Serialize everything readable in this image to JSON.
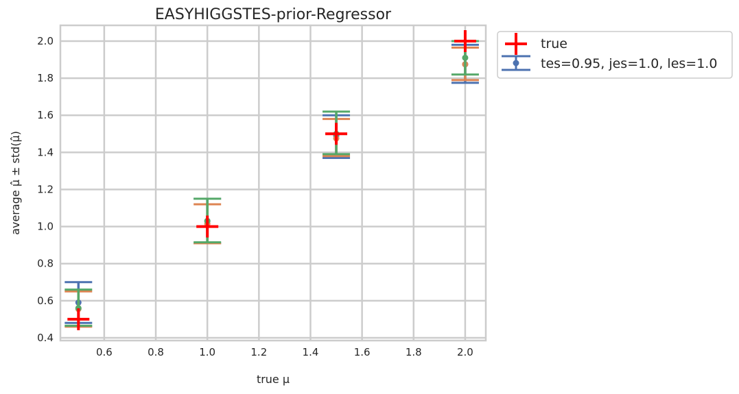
{
  "chart_data": {
    "type": "scatter",
    "title": "EASYHIGGSTES-prior-Regressor",
    "xlabel": "true μ",
    "ylabel": "average μ̂ ± std(μ̂)",
    "xlim": [
      0.43,
      2.08
    ],
    "ylim": [
      0.385,
      2.085
    ],
    "xticks": [
      0.6,
      0.8,
      1.0,
      1.2,
      1.4,
      1.6,
      1.8,
      2.0
    ],
    "yticks": [
      0.4,
      0.6,
      0.8,
      1.0,
      1.2,
      1.4,
      1.6,
      1.8,
      2.0
    ],
    "grid": true,
    "legend_position": "outside-top-right",
    "true_series": {
      "name": "true",
      "color": "#ff0000",
      "points": [
        {
          "x": 0.5,
          "y": 0.5
        },
        {
          "x": 1.0,
          "y": 1.0
        },
        {
          "x": 1.5,
          "y": 1.5
        },
        {
          "x": 2.0,
          "y": 2.0
        }
      ]
    },
    "series": [
      {
        "name": "tes=0.95, jes=1.0, les=1.0",
        "color": "#4c72b0",
        "points": [
          {
            "x": 0.5,
            "y": 0.59,
            "low": 0.48,
            "high": 0.7
          },
          {
            "x": 1.0,
            "y": 1.03,
            "low": 0.91,
            "high": 1.15
          },
          {
            "x": 1.5,
            "y": 1.49,
            "low": 1.37,
            "high": 1.6
          },
          {
            "x": 2.0,
            "y": 1.875,
            "low": 1.775,
            "high": 1.98
          }
        ]
      },
      {
        "name": "",
        "color": "#dd8452",
        "points": [
          {
            "x": 0.5,
            "y": 0.555,
            "low": 0.46,
            "high": 0.65
          },
          {
            "x": 1.0,
            "y": 1.015,
            "low": 0.91,
            "high": 1.12
          },
          {
            "x": 1.5,
            "y": 1.475,
            "low": 1.38,
            "high": 1.58
          },
          {
            "x": 2.0,
            "y": 1.875,
            "low": 1.79,
            "high": 1.965
          }
        ]
      },
      {
        "name": "",
        "color": "#55a868",
        "points": [
          {
            "x": 0.5,
            "y": 0.56,
            "low": 0.465,
            "high": 0.66
          },
          {
            "x": 1.0,
            "y": 1.03,
            "low": 0.915,
            "high": 1.15
          },
          {
            "x": 1.5,
            "y": 1.5,
            "low": 1.39,
            "high": 1.62
          },
          {
            "x": 2.0,
            "y": 1.91,
            "low": 1.82,
            "high": 2.0
          }
        ]
      }
    ]
  }
}
